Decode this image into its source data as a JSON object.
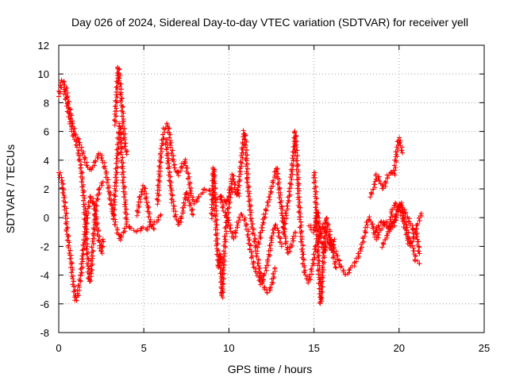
{
  "chart_data": {
    "type": "scatter",
    "title": "Day 026 of 2024, Sidereal Day-to-day VTEC variation (SDTVAR) for receiver yell",
    "xlabel": "GPS time / hours",
    "ylabel": "SDTVAR / TECUs",
    "xlim": [
      0,
      25
    ],
    "ylim": [
      -8,
      12
    ],
    "xticks": [
      "0",
      "5",
      "10",
      "15",
      "20",
      "25"
    ],
    "yticks": [
      "-8",
      "-6",
      "-4",
      "-2",
      "0",
      "2",
      "4",
      "6",
      "8",
      "10",
      "12"
    ],
    "grid": true,
    "marker": "+",
    "color": "#ff0000",
    "series": [
      {
        "name": "SDTVAR",
        "tracks": [
          [
            [
              0.0,
              8.5
            ],
            [
              0.2,
              9.6
            ],
            [
              0.4,
              9.2
            ],
            [
              0.6,
              7.8
            ],
            [
              0.8,
              6.5
            ],
            [
              1.0,
              5.8
            ],
            [
              1.2,
              5.3
            ],
            [
              1.4,
              4.6
            ],
            [
              1.6,
              3.8
            ],
            [
              1.8,
              3.3
            ],
            [
              2.0,
              3.5
            ],
            [
              2.2,
              4.0
            ],
            [
              2.4,
              4.5
            ],
            [
              2.6,
              4.0
            ],
            [
              2.8,
              3.0
            ],
            [
              3.0,
              1.5
            ],
            [
              3.2,
              0.2
            ],
            [
              3.4,
              -0.8
            ],
            [
              3.6,
              -1.5
            ],
            [
              3.8,
              -1.0
            ],
            [
              4.0,
              -0.5
            ],
            [
              4.3,
              -0.8
            ],
            [
              4.6,
              -1.0
            ],
            [
              4.9,
              -0.7
            ],
            [
              5.2,
              -0.8
            ],
            [
              5.5,
              -0.5
            ],
            [
              5.8,
              -0.2
            ],
            [
              6.0,
              0.2
            ]
          ],
          [
            [
              0.0,
              3.2
            ],
            [
              0.2,
              2.5
            ],
            [
              0.4,
              0.5
            ],
            [
              0.5,
              -1.0
            ],
            [
              0.6,
              -2.0
            ],
            [
              0.7,
              -2.8
            ],
            [
              0.8,
              -4.0
            ],
            [
              0.9,
              -5.0
            ],
            [
              1.0,
              -5.8
            ],
            [
              1.1,
              -5.5
            ],
            [
              1.3,
              -4.0
            ],
            [
              1.5,
              -1.5
            ],
            [
              1.7,
              0.5
            ],
            [
              1.9,
              1.5
            ],
            [
              2.1,
              0.8
            ],
            [
              2.3,
              -1.0
            ],
            [
              2.5,
              -2.5
            ],
            [
              2.6,
              -1.5
            ]
          ],
          [
            [
              0.3,
              9.0
            ],
            [
              0.5,
              7.8
            ],
            [
              0.7,
              6.5
            ],
            [
              0.9,
              5.6
            ],
            [
              1.1,
              5.0
            ],
            [
              1.3,
              3.5
            ],
            [
              1.5,
              1.0
            ],
            [
              1.6,
              -1.0
            ],
            [
              1.7,
              -3.0
            ],
            [
              1.8,
              -4.5
            ],
            [
              1.9,
              -3.8
            ],
            [
              2.0,
              -2.0
            ],
            [
              2.2,
              1.0
            ],
            [
              2.4,
              2.0
            ],
            [
              2.6,
              2.5
            ]
          ],
          [
            [
              3.3,
              6.5
            ],
            [
              3.5,
              10.5
            ],
            [
              3.6,
              9.5
            ],
            [
              3.7,
              8.0
            ],
            [
              3.8,
              6.5
            ],
            [
              3.9,
              5.0
            ],
            [
              4.0,
              4.4
            ]
          ],
          [
            [
              3.2,
              0.0
            ],
            [
              3.35,
              2.5
            ],
            [
              3.5,
              5.5
            ],
            [
              3.6,
              6.5
            ],
            [
              3.7,
              4.5
            ],
            [
              3.8,
              2.5
            ],
            [
              3.9,
              1.0
            ],
            [
              4.0,
              -0.3
            ]
          ],
          [
            [
              4.6,
              0.2
            ],
            [
              4.8,
              1.5
            ],
            [
              5.0,
              2.2
            ],
            [
              5.2,
              1.0
            ],
            [
              5.4,
              -0.5
            ],
            [
              5.6,
              -0.8
            ]
          ],
          [
            [
              5.8,
              1.0
            ],
            [
              6.0,
              4.5
            ],
            [
              6.2,
              6.2
            ],
            [
              6.4,
              6.5
            ],
            [
              6.6,
              5.0
            ],
            [
              6.8,
              3.5
            ],
            [
              7.0,
              3.0
            ],
            [
              7.2,
              3.5
            ],
            [
              7.4,
              4.0
            ],
            [
              7.6,
              3.0
            ],
            [
              7.8,
              1.5
            ],
            [
              8.0,
              1.0
            ],
            [
              8.3,
              1.5
            ],
            [
              8.6,
              2.0
            ],
            [
              8.9,
              1.8
            ],
            [
              9.2,
              1.2
            ],
            [
              9.5,
              1.5
            ],
            [
              9.8,
              1.0
            ],
            [
              10.0,
              1.5
            ]
          ],
          [
            [
              6.3,
              5.5
            ],
            [
              6.5,
              3.0
            ],
            [
              6.7,
              1.0
            ],
            [
              6.9,
              0.0
            ],
            [
              7.1,
              -0.5
            ],
            [
              7.3,
              0.5
            ],
            [
              7.5,
              1.8
            ],
            [
              7.7,
              1.0
            ],
            [
              7.9,
              0.2
            ]
          ],
          [
            [
              9.0,
              0.0
            ],
            [
              9.1,
              3.5
            ],
            [
              9.2,
              1.0
            ],
            [
              9.3,
              -2.0
            ],
            [
              9.4,
              -3.5
            ],
            [
              9.5,
              -2.5
            ],
            [
              9.6,
              -5.5
            ],
            [
              9.7,
              -3.0
            ],
            [
              9.8,
              -1.0
            ],
            [
              10.0,
              1.0
            ],
            [
              10.2,
              3.0
            ],
            [
              10.4,
              2.0
            ],
            [
              10.6,
              1.5
            ]
          ],
          [
            [
              9.5,
              1.5
            ],
            [
              9.7,
              0.5
            ],
            [
              9.9,
              0.0
            ],
            [
              10.1,
              -0.8
            ],
            [
              10.3,
              -1.5
            ],
            [
              10.5,
              -0.5
            ],
            [
              10.7,
              0.3
            ],
            [
              10.9,
              0.0
            ],
            [
              11.1,
              -1.0
            ],
            [
              11.3,
              -2.5
            ],
            [
              11.5,
              -3.5
            ],
            [
              11.7,
              -4.0
            ],
            [
              11.9,
              -4.6
            ],
            [
              12.1,
              -4.0
            ],
            [
              12.3,
              -3.0
            ],
            [
              12.5,
              -1.5
            ],
            [
              12.7,
              -0.5
            ],
            [
              12.9,
              -1.0
            ],
            [
              13.1,
              -2.0
            ]
          ],
          [
            [
              10.0,
              2.0
            ],
            [
              10.5,
              1.6
            ],
            [
              10.7,
              3.5
            ],
            [
              10.9,
              6.0
            ],
            [
              11.0,
              5.0
            ],
            [
              11.1,
              2.5
            ],
            [
              11.3,
              0.0
            ],
            [
              11.5,
              -1.5
            ],
            [
              11.7,
              -3.0
            ],
            [
              11.9,
              -4.3
            ],
            [
              12.1,
              -5.0
            ],
            [
              12.3,
              -5.2
            ],
            [
              12.5,
              -4.8
            ],
            [
              12.7,
              -3.5
            ]
          ],
          [
            [
              11.7,
              -2.0
            ],
            [
              11.9,
              -1.0
            ],
            [
              12.1,
              0.2
            ],
            [
              12.3,
              1.0
            ],
            [
              12.5,
              2.0
            ],
            [
              12.7,
              3.0
            ],
            [
              12.8,
              3.5
            ],
            [
              12.9,
              2.5
            ],
            [
              13.1,
              0.5
            ],
            [
              13.3,
              -1.5
            ],
            [
              13.5,
              -2.5
            ],
            [
              13.7,
              -1.8
            ],
            [
              13.9,
              -1.0
            ]
          ],
          [
            [
              13.2,
              -1.0
            ],
            [
              13.4,
              0.5
            ],
            [
              13.6,
              2.0
            ],
            [
              13.8,
              4.5
            ],
            [
              13.9,
              6.0
            ],
            [
              14.0,
              4.0
            ],
            [
              14.1,
              1.5
            ],
            [
              14.2,
              -0.5
            ],
            [
              14.3,
              -2.0
            ],
            [
              14.4,
              -3.5
            ],
            [
              14.5,
              -4.0
            ],
            [
              14.7,
              -4.5
            ],
            [
              14.9,
              -3.5
            ],
            [
              15.1,
              -2.0
            ],
            [
              15.3,
              -1.5
            ],
            [
              15.5,
              -0.5
            ],
            [
              15.7,
              -1.0
            ],
            [
              15.9,
              -1.5
            ],
            [
              16.1,
              -2.0
            ],
            [
              16.3,
              -2.5
            ],
            [
              16.6,
              -3.5
            ],
            [
              16.9,
              -4.0
            ],
            [
              17.2,
              -3.5
            ],
            [
              17.5,
              -3.0
            ],
            [
              17.8,
              -2.0
            ],
            [
              18.0,
              -1.0
            ],
            [
              18.2,
              0.0
            ],
            [
              18.4,
              -0.5
            ],
            [
              18.6,
              -1.0
            ],
            [
              18.8,
              -0.5
            ],
            [
              19.0,
              -0.2
            ],
            [
              19.2,
              -0.5
            ],
            [
              19.4,
              -0.8
            ],
            [
              19.6,
              -0.5
            ],
            [
              19.8,
              0.0
            ],
            [
              20.0,
              1.0
            ],
            [
              20.2,
              0.5
            ],
            [
              20.4,
              -0.5
            ],
            [
              20.6,
              -1.5
            ],
            [
              20.8,
              -2.0
            ],
            [
              21.0,
              -3.0
            ],
            [
              21.2,
              -3.2
            ]
          ],
          [
            [
              15.0,
              3.2
            ],
            [
              15.1,
              1.5
            ],
            [
              15.2,
              -1.5
            ],
            [
              15.3,
              -4.0
            ],
            [
              15.4,
              -6.0
            ],
            [
              15.5,
              -4.0
            ],
            [
              15.6,
              -2.0
            ],
            [
              15.7,
              0.0
            ],
            [
              15.9,
              -1.0
            ],
            [
              16.1,
              -2.5
            ],
            [
              16.3,
              -3.5
            ]
          ],
          [
            [
              14.7,
              -0.5
            ],
            [
              15.0,
              -1.0
            ],
            [
              15.2,
              0.5
            ],
            [
              15.4,
              -1.5
            ],
            [
              15.6,
              -2.5
            ],
            [
              15.8,
              -1.5
            ],
            [
              16.0,
              -2.2
            ],
            [
              16.2,
              -1.5
            ]
          ],
          [
            [
              18.3,
              1.5
            ],
            [
              18.5,
              2.0
            ],
            [
              18.7,
              3.0
            ],
            [
              18.9,
              2.5
            ],
            [
              19.1,
              2.0
            ],
            [
              19.3,
              2.8
            ],
            [
              19.5,
              3.2
            ],
            [
              19.7,
              3.0
            ],
            [
              19.9,
              5.0
            ],
            [
              20.0,
              5.5
            ],
            [
              20.1,
              5.0
            ],
            [
              20.2,
              4.5
            ]
          ],
          [
            [
              18.5,
              -1.0
            ],
            [
              18.7,
              -1.5
            ],
            [
              18.9,
              -0.8
            ],
            [
              19.1,
              -0.5
            ],
            [
              19.3,
              -0.3
            ],
            [
              19.5,
              -0.8
            ],
            [
              19.7,
              -0.5
            ],
            [
              19.9,
              0.5
            ],
            [
              20.1,
              1.0
            ],
            [
              20.3,
              0.5
            ],
            [
              20.5,
              0.0
            ],
            [
              20.7,
              -0.5
            ],
            [
              20.9,
              -1.0
            ],
            [
              21.1,
              -0.5
            ],
            [
              21.3,
              0.3
            ]
          ],
          [
            [
              19.0,
              -2.0
            ],
            [
              19.2,
              -1.5
            ],
            [
              19.4,
              -1.0
            ],
            [
              19.6,
              0.5
            ],
            [
              19.8,
              1.0
            ],
            [
              20.0,
              0.8
            ],
            [
              20.2,
              0.0
            ],
            [
              20.4,
              -1.0
            ],
            [
              20.6,
              -2.0
            ],
            [
              20.8,
              -1.5
            ],
            [
              21.0,
              -1.0
            ],
            [
              21.2,
              -2.5
            ]
          ]
        ]
      }
    ]
  }
}
